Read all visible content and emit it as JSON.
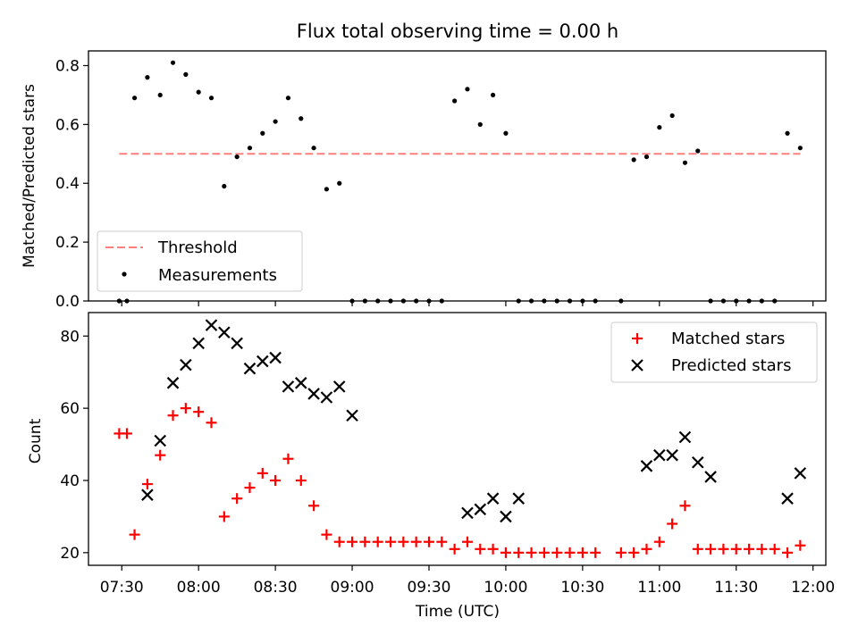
{
  "chart_data": [
    {
      "type": "scatter",
      "title": "Flux total observing time = 0.00 h",
      "xlabel": "",
      "ylabel": "Matched/Predicted stars",
      "ylim": [
        0,
        0.85
      ],
      "yticks": [
        "0.0",
        "0.2",
        "0.4",
        "0.6",
        "0.8"
      ],
      "ytick_values": [
        0,
        0.2,
        0.4,
        0.6,
        0.8
      ],
      "legend_position": "lower-left",
      "threshold": {
        "name": "Threshold",
        "value": 0.5,
        "x_start": "07:29",
        "x_end": "11:55",
        "color": "#ff7f7f"
      },
      "series": [
        {
          "name": "Measurements",
          "color": "#000000",
          "x": [
            "07:29",
            "07:32",
            "07:35",
            "07:40",
            "07:45",
            "07:50",
            "07:55",
            "08:00",
            "08:05",
            "08:10",
            "08:15",
            "08:20",
            "08:25",
            "08:30",
            "08:35",
            "08:40",
            "08:45",
            "08:50",
            "08:55",
            "09:00",
            "09:05",
            "09:10",
            "09:15",
            "09:20",
            "09:25",
            "09:30",
            "09:35",
            "09:40",
            "09:45",
            "09:50",
            "09:55",
            "10:00",
            "10:05",
            "10:10",
            "10:15",
            "10:20",
            "10:25",
            "10:30",
            "10:35",
            "10:45",
            "10:50",
            "10:55",
            "11:00",
            "11:05",
            "11:10",
            "11:15",
            "11:20",
            "11:25",
            "11:30",
            "11:35",
            "11:40",
            "11:45",
            "11:50",
            "11:55"
          ],
          "y": [
            0.0,
            0.0,
            0.69,
            0.76,
            0.7,
            0.81,
            0.77,
            0.71,
            0.69,
            0.39,
            0.49,
            0.52,
            0.57,
            0.61,
            0.69,
            0.62,
            0.52,
            0.38,
            0.4,
            0.0,
            0.0,
            0.0,
            0.0,
            0.0,
            0.0,
            0.0,
            0.0,
            0.68,
            0.72,
            0.6,
            0.7,
            0.57,
            0.0,
            0.0,
            0.0,
            0.0,
            0.0,
            0.0,
            0.0,
            0.0,
            0.48,
            0.49,
            0.59,
            0.63,
            0.47,
            0.51,
            0.0,
            0.0,
            0.0,
            0.0,
            0.0,
            0.0,
            0.57,
            0.52
          ]
        }
      ]
    },
    {
      "type": "scatter",
      "title": "",
      "xlabel": "Time (UTC)",
      "ylabel": "Count",
      "ylim": [
        16.5,
        86.5
      ],
      "yticks": [
        "20",
        "40",
        "60",
        "80"
      ],
      "ytick_values": [
        20,
        40,
        60,
        80
      ],
      "xlim": [
        "07:17",
        "12:05"
      ],
      "xticks": [
        "07:30",
        "08:00",
        "08:30",
        "09:00",
        "09:30",
        "10:00",
        "10:30",
        "11:00",
        "11:30",
        "12:00"
      ],
      "legend_position": "upper-right",
      "series": [
        {
          "name": "Matched stars",
          "color": "#ff0000",
          "marker": "plus",
          "x": [
            "07:29",
            "07:32",
            "07:35",
            "07:40",
            "07:45",
            "07:50",
            "07:55",
            "08:00",
            "08:05",
            "08:10",
            "08:15",
            "08:20",
            "08:25",
            "08:30",
            "08:35",
            "08:40",
            "08:45",
            "08:50",
            "08:55",
            "09:00",
            "09:05",
            "09:10",
            "09:15",
            "09:20",
            "09:25",
            "09:30",
            "09:35",
            "09:40",
            "09:45",
            "09:50",
            "09:55",
            "10:00",
            "10:05",
            "10:10",
            "10:15",
            "10:20",
            "10:25",
            "10:30",
            "10:35",
            "10:45",
            "10:50",
            "10:55",
            "11:00",
            "11:05",
            "11:10",
            "11:15",
            "11:20",
            "11:25",
            "11:30",
            "11:35",
            "11:40",
            "11:45",
            "11:50",
            "11:55"
          ],
          "y": [
            53,
            53,
            25,
            39,
            47,
            58,
            60,
            59,
            56,
            30,
            35,
            38,
            42,
            40,
            46,
            40,
            33,
            25,
            23,
            23,
            23,
            23,
            23,
            23,
            23,
            23,
            23,
            21,
            23,
            21,
            21,
            20,
            20,
            20,
            20,
            20,
            20,
            20,
            20,
            20,
            20,
            21,
            23,
            28,
            33,
            21,
            21,
            21,
            21,
            21,
            21,
            21,
            20,
            22
          ]
        },
        {
          "name": "Predicted stars",
          "color": "#000000",
          "marker": "x",
          "x": [
            "07:40",
            "07:45",
            "07:50",
            "07:55",
            "08:00",
            "08:05",
            "08:10",
            "08:15",
            "08:20",
            "08:25",
            "08:30",
            "08:35",
            "08:40",
            "08:45",
            "08:50",
            "08:55",
            "09:00",
            "09:45",
            "09:50",
            "09:55",
            "10:00",
            "10:05",
            "10:55",
            "11:00",
            "11:05",
            "11:10",
            "11:15",
            "11:20",
            "11:50",
            "11:55"
          ],
          "y": [
            36,
            51,
            67,
            72,
            78,
            83,
            81,
            78,
            71,
            73,
            74,
            66,
            67,
            64,
            63,
            66,
            58,
            31,
            32,
            35,
            30,
            35,
            44,
            47,
            47,
            52,
            45,
            41,
            35,
            42
          ]
        }
      ]
    }
  ]
}
